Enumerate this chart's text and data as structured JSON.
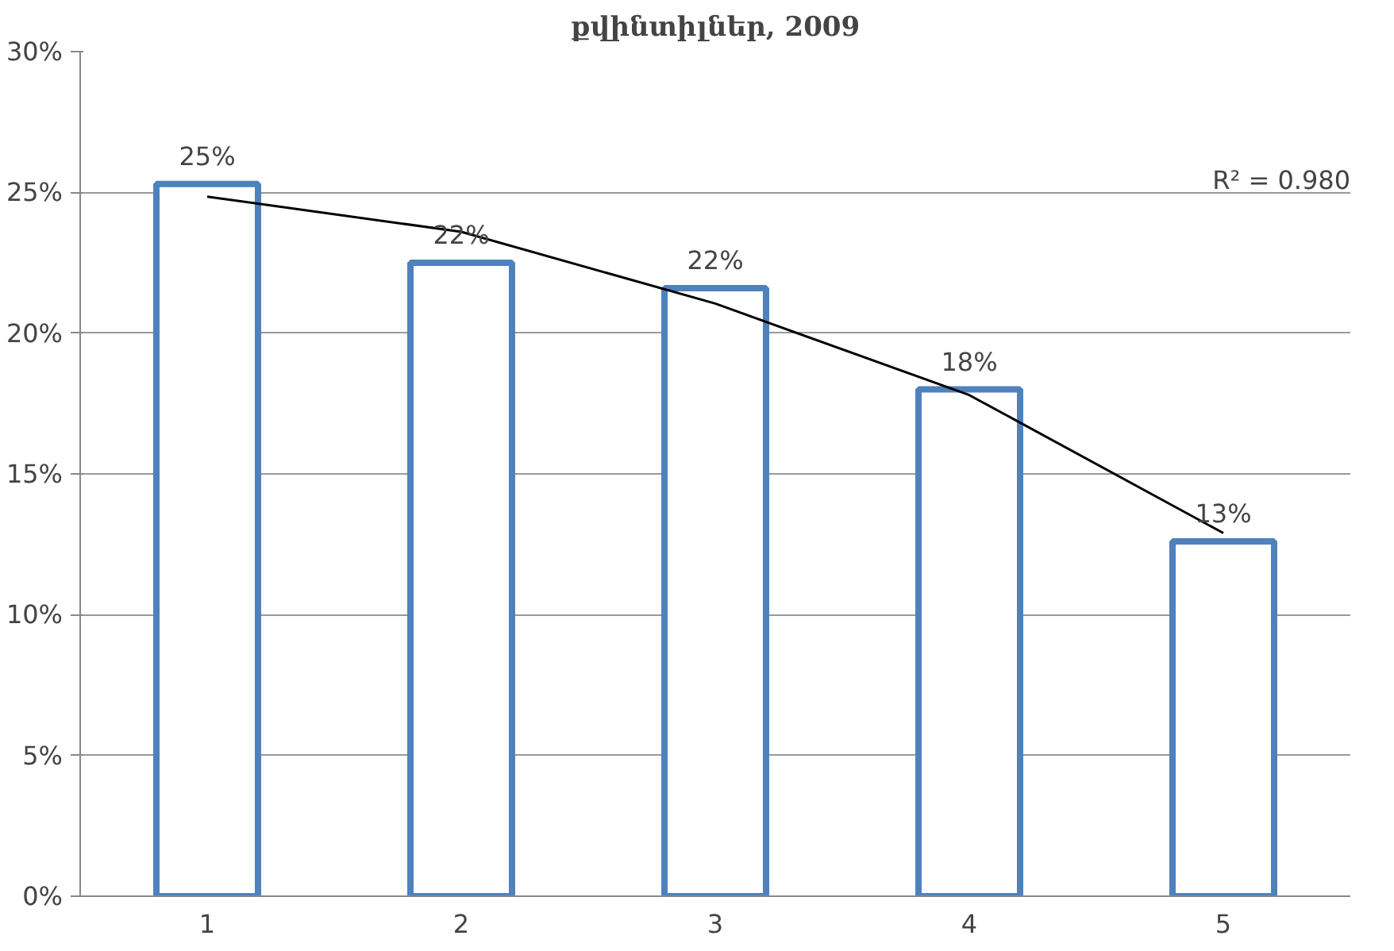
{
  "chart_data": {
    "type": "bar",
    "title": "քվինտիլներ, 2009",
    "categories": [
      "1",
      "2",
      "3",
      "4",
      "5"
    ],
    "series": [
      {
        "color": "#4f81bd",
        "values": [
          25.3,
          22.5,
          21.6,
          18.0,
          12.6
        ],
        "value_labels": [
          "25%",
          "22%",
          "22%",
          "18%",
          "13%"
        ]
      },
      {
        "type": "line",
        "color": "#000000",
        "values": [
          24.85,
          23.6,
          21.05,
          17.8,
          12.9
        ]
      }
    ],
    "ylim": [
      0,
      30
    ],
    "yticks": [
      {
        "value": 0,
        "label": "0%"
      },
      {
        "value": 5,
        "label": "5%"
      },
      {
        "value": 10,
        "label": "10%"
      },
      {
        "value": 15,
        "label": "15%"
      },
      {
        "value": 20,
        "label": "20%"
      },
      {
        "value": 25,
        "label": "25%"
      },
      {
        "value": 30,
        "label": "30%"
      }
    ],
    "annotations": [
      "R² = 0.980"
    ],
    "grid": "y"
  }
}
